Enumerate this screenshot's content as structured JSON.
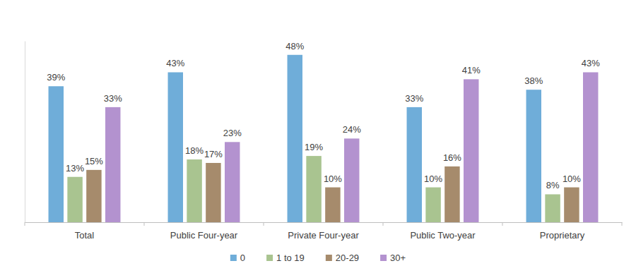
{
  "chart_data": {
    "type": "bar",
    "categories": [
      "Total",
      "Public Four-year",
      "Private Four-year",
      "Public Two-year",
      "Proprietary"
    ],
    "series": [
      {
        "name": "0",
        "color": "#6fadd9",
        "values": [
          39,
          43,
          48,
          33,
          38
        ],
        "value_labels": [
          "39%",
          "43%",
          "48%",
          "33%",
          "38%"
        ]
      },
      {
        "name": "1 to 19",
        "color": "#a9c490",
        "values": [
          13,
          18,
          19,
          10,
          8
        ],
        "value_labels": [
          "13%",
          "18%",
          "19%",
          "10%",
          "8%"
        ]
      },
      {
        "name": "20-29",
        "color": "#a68b6c",
        "values": [
          15,
          17,
          10,
          16,
          10
        ],
        "value_labels": [
          "15%",
          "17%",
          "10%",
          "16%",
          "10%"
        ]
      },
      {
        "name": "30+",
        "color": "#b392cf",
        "values": [
          33,
          23,
          24,
          41,
          43
        ],
        "value_labels": [
          "33%",
          "23%",
          "24%",
          "41%",
          "43%"
        ]
      }
    ],
    "ylim": [
      0,
      52
    ],
    "data_labels": true,
    "tick_labels": "x",
    "legend": "bottom"
  }
}
